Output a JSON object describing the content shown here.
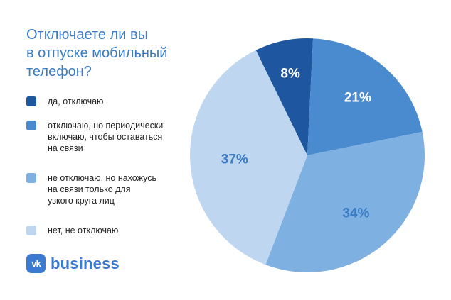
{
  "title_lines": [
    "Отключаете ли вы",
    "в отпуске мобильный",
    "телефон?"
  ],
  "brand": {
    "logo_text": "vk",
    "name": "business"
  },
  "colors": {
    "title": "#3b7cc4",
    "label_dark": "#ffffff",
    "label_light": "#3b7cc4"
  },
  "chart_data": {
    "type": "pie",
    "title": "Отключаете ли вы в отпуске мобильный телефон?",
    "legend_position": "left",
    "slices": [
      {
        "label_lines": [
          "да, отключаю"
        ],
        "value": 8,
        "display": "8%",
        "color": "#1e56a0",
        "label_color": "#ffffff"
      },
      {
        "label_lines": [
          "отключаю, но периодически",
          "включаю, чтобы оставаться",
          "на связи"
        ],
        "value": 21,
        "display": "21%",
        "color": "#4a8bd0",
        "label_color": "#ffffff"
      },
      {
        "label_lines": [
          "не отключаю, но нахожусь",
          "на связи только для",
          "узкого круга лиц"
        ],
        "value": 34,
        "display": "34%",
        "color": "#7fb0e2",
        "label_color": "#3b7cc4"
      },
      {
        "label_lines": [
          "нет, не отключаю"
        ],
        "value": 37,
        "display": "37%",
        "color": "#bed6ef",
        "label_color": "#3b7cc4"
      }
    ]
  }
}
